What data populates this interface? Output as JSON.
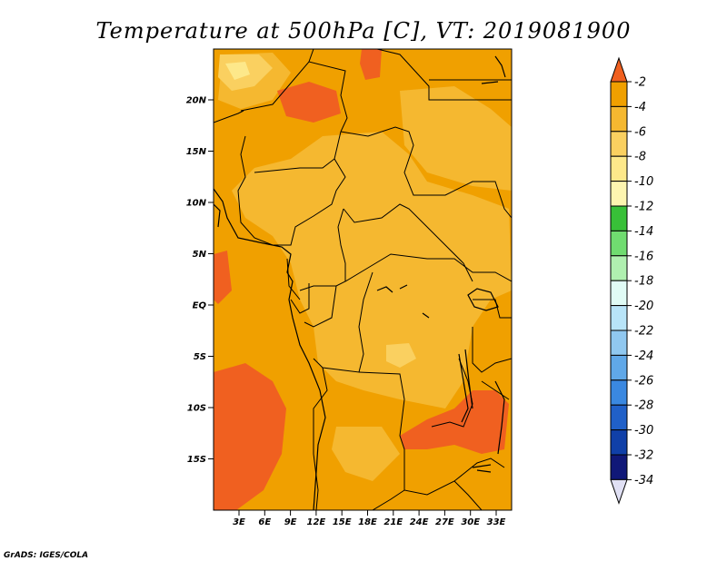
{
  "title": "Temperature at 500hPa [C], VT: 2019081900",
  "credit": "GrADS: IGES/COLA",
  "map": {
    "lat_labels": [
      "20N",
      "15N",
      "10N",
      "5N",
      "EQ",
      "5S",
      "10S",
      "15S"
    ],
    "lon_labels": [
      "3E",
      "6E",
      "9E",
      "12E",
      "15E",
      "18E",
      "21E",
      "24E",
      "27E",
      "30E",
      "33E"
    ]
  },
  "colorbar": {
    "labels": [
      "-2",
      "-4",
      "-6",
      "-8",
      "-10",
      "-12",
      "-14",
      "-16",
      "-18",
      "-20",
      "-22",
      "-24",
      "-26",
      "-28",
      "-30",
      "-32",
      "-34"
    ],
    "colors": [
      "#f06020",
      "#f0a000",
      "#f5b830",
      "#fad060",
      "#fde88a",
      "#fdf5b0",
      "#38c038",
      "#70dc70",
      "#b0f0b0",
      "#e0fbf5",
      "#b8e4f8",
      "#90c8f0",
      "#60a8e8",
      "#3a88e0",
      "#2060c8",
      "#1040a8",
      "#101878",
      "#e0e0f4"
    ]
  },
  "chart_data": {
    "type": "heatmap",
    "title": "Temperature at 500hPa [C], VT: 2019081900",
    "variable": "Temperature at 500hPa",
    "units": "C",
    "valid_time": "2019081900",
    "lon_range": [
      0,
      34
    ],
    "lat_range": [
      -20,
      25
    ],
    "contour_levels": [
      -2,
      -4,
      -6,
      -8,
      -10,
      -12,
      -14,
      -16,
      -18,
      -20,
      -22,
      -24,
      -26,
      -28,
      -30,
      -32,
      -34
    ],
    "dominant_values": "-4 to -8 across domain; warmer (about -4) along west coast, Sahara north, and southeast near Zambia/Malawi; cooler (about -8) over Congo Basin"
  }
}
